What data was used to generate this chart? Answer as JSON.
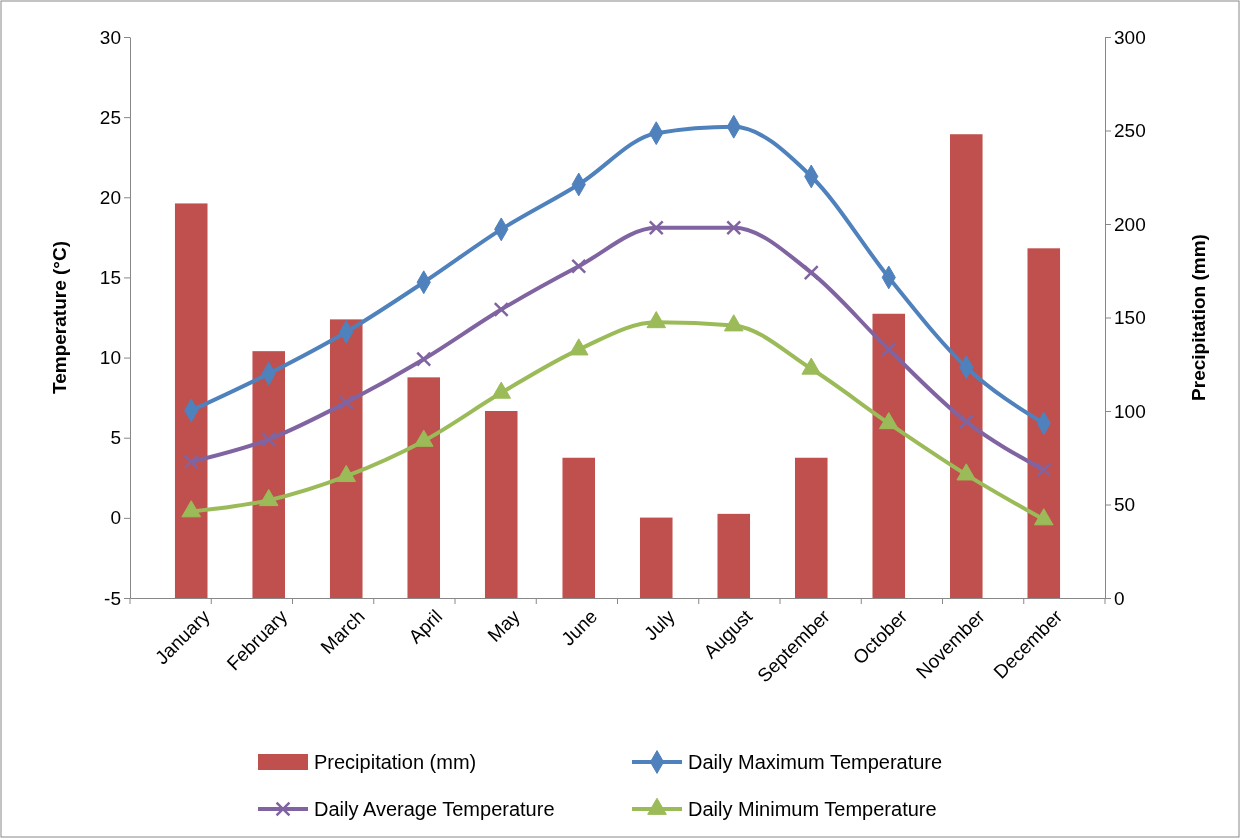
{
  "chart_data": {
    "type": "bar",
    "ylabel": "Temperature (°C)",
    "y2label": "Precipitation (mm)",
    "categories": [
      "January",
      "February",
      "March",
      "April",
      "May",
      "June",
      "July",
      "August",
      "September",
      "October",
      "November",
      "December"
    ],
    "ylim": [
      -5,
      30
    ],
    "yticks": [
      -5,
      0,
      5,
      10,
      15,
      20,
      25,
      30
    ],
    "y2lim": [
      0,
      300
    ],
    "y2ticks": [
      0,
      50,
      100,
      150,
      200,
      250,
      300
    ],
    "grid": false,
    "legend": "bottom",
    "series": [
      {
        "name": "Precipitation (mm)",
        "axis": "y2",
        "color": "#c0504d",
        "values": [
          211,
          132,
          149,
          118,
          100,
          75,
          43,
          45,
          75,
          152,
          248,
          187
        ]
      },
      {
        "name": "Daily Maximum Temperature",
        "type": "line",
        "color": "#4f81bd",
        "marker": "diamond",
        "values": [
          6.7,
          9.0,
          11.6,
          14.7,
          18.0,
          20.8,
          24.0,
          24.4,
          21.3,
          15.0,
          9.4,
          5.9
        ]
      },
      {
        "name": "Daily Average Temperature",
        "type": "line",
        "color": "#8064a2",
        "marker": "cross",
        "values": [
          3.5,
          4.9,
          7.2,
          9.9,
          13.0,
          15.7,
          18.1,
          18.1,
          15.3,
          10.5,
          6.0,
          3.0
        ]
      },
      {
        "name": "Daily Minimum Temperature",
        "type": "line",
        "color": "#9bbb59",
        "marker": "triangle",
        "values": [
          0.4,
          1.1,
          2.6,
          4.8,
          7.8,
          10.5,
          12.2,
          12.0,
          9.3,
          5.9,
          2.7,
          -0.1
        ]
      }
    ]
  }
}
